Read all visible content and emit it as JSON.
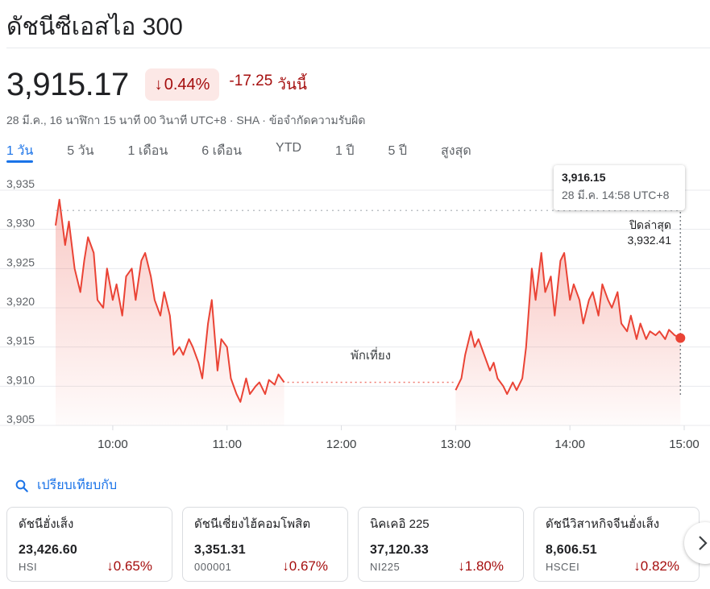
{
  "title": "ดัชนีซีเอสไอ 300",
  "price": "3,915.17",
  "change_pct": "0.44%",
  "change_abs": "-17.25",
  "change_period": "วันนี้",
  "meta": "28 มี.ค., 16 นาฬิกา 15 นาที 00 วินาที UTC+8 · SHA · ข้อจำกัดความรับผิด",
  "tabs": [
    "1 วัน",
    "5 วัน",
    "1 เดือน",
    "6 เดือน",
    "YTD",
    "1 ปี",
    "5 ปี",
    "สูงสุด"
  ],
  "active_tab": 0,
  "tooltip": {
    "value": "3,916.15",
    "time": "28 มี.ค. 14:58 UTC+8"
  },
  "prev_close": {
    "label": "ปิดล่าสุด",
    "value": "3,932.41"
  },
  "lunch_label": "พักเที่ยง",
  "colors": {
    "down": "#a50e0e",
    "line": "#ea4335",
    "accent": "#1a73e8"
  },
  "chart_data": {
    "type": "line",
    "y_ticks": [
      "3,935",
      "3,930",
      "3,925",
      "3,920",
      "3,915",
      "3,910",
      "3,905"
    ],
    "x_ticks": [
      "10:00",
      "11:00",
      "12:00",
      "13:00",
      "14:00",
      "15:00"
    ],
    "ylim": [
      3905,
      3935
    ],
    "xlim": [
      "09:30",
      "15:00"
    ],
    "prev_close": 3932.41,
    "series": [
      {
        "segment": "morning",
        "x": [
          "09:30",
          "09:32",
          "09:35",
          "09:37",
          "09:40",
          "09:43",
          "09:45",
          "09:47",
          "09:50",
          "09:52",
          "09:55",
          "09:57",
          "10:00",
          "10:02",
          "10:05",
          "10:07",
          "10:10",
          "10:12",
          "10:15",
          "10:17",
          "10:20",
          "10:22",
          "10:25",
          "10:27",
          "10:30",
          "10:32",
          "10:35",
          "10:37",
          "10:40",
          "10:42",
          "10:45",
          "10:47",
          "10:50",
          "10:52",
          "10:55",
          "10:57",
          "11:00",
          "11:02",
          "11:05",
          "11:07",
          "11:10",
          "11:12",
          "11:15",
          "11:17",
          "11:20",
          "11:22",
          "11:25",
          "11:27",
          "11:30"
        ],
        "y": [
          3930.5,
          3933.8,
          3928,
          3931,
          3925,
          3922,
          3926,
          3929,
          3927,
          3921,
          3920,
          3925,
          3921,
          3923,
          3919,
          3924,
          3925,
          3921,
          3926,
          3927,
          3924,
          3921,
          3919,
          3922,
          3919,
          3914,
          3915,
          3914,
          3916,
          3915,
          3913,
          3911,
          3918,
          3921,
          3912,
          3916,
          3915,
          3911,
          3909,
          3908,
          3911,
          3909,
          3910,
          3910.5,
          3909,
          3910.8,
          3910.2,
          3911.5,
          3910.5
        ]
      },
      {
        "segment": "afternoon",
        "x": [
          "13:00",
          "13:03",
          "13:05",
          "13:08",
          "13:10",
          "13:12",
          "13:15",
          "13:18",
          "13:20",
          "13:22",
          "13:25",
          "13:27",
          "13:30",
          "13:32",
          "13:35",
          "13:37",
          "13:40",
          "13:42",
          "13:45",
          "13:47",
          "13:50",
          "13:52",
          "13:55",
          "13:57",
          "14:00",
          "14:02",
          "14:05",
          "14:07",
          "14:10",
          "14:12",
          "14:15",
          "14:17",
          "14:20",
          "14:22",
          "14:25",
          "14:27",
          "14:30",
          "14:32",
          "14:35",
          "14:37",
          "14:40",
          "14:42",
          "14:45",
          "14:47",
          "14:50",
          "14:52",
          "14:55",
          "14:58"
        ],
        "y": [
          3909.5,
          3911,
          3914,
          3917,
          3915,
          3916,
          3914,
          3912,
          3913,
          3911,
          3910,
          3909,
          3910.5,
          3909.5,
          3911,
          3915,
          3925,
          3921,
          3927,
          3922,
          3924,
          3919,
          3926,
          3927,
          3921,
          3923,
          3921,
          3918,
          3921,
          3922,
          3919,
          3923,
          3921,
          3920,
          3922,
          3918,
          3917,
          3919,
          3916,
          3918,
          3916,
          3917,
          3916.5,
          3917,
          3916,
          3917.2,
          3916.5,
          3916.15
        ]
      }
    ]
  },
  "compare": {
    "label": "เปรียบเทียบกับ"
  },
  "cards": [
    {
      "name": "ดัชนีฮั่งเส็ง",
      "value": "23,426.60",
      "symbol": "HSI",
      "change": "0.65%"
    },
    {
      "name": "ดัชนีเซี่ยงไฮ้คอมโพสิต",
      "value": "3,351.31",
      "symbol": "000001",
      "change": "0.67%"
    },
    {
      "name": "นิคเคอิ 225",
      "value": "37,120.33",
      "symbol": "NI225",
      "change": "1.80%"
    },
    {
      "name": "ดัชนีวิสาหกิจจีนฮั่งเส็ง",
      "value": "8,606.51",
      "symbol": "HSCEI",
      "change": "0.82%"
    }
  ]
}
